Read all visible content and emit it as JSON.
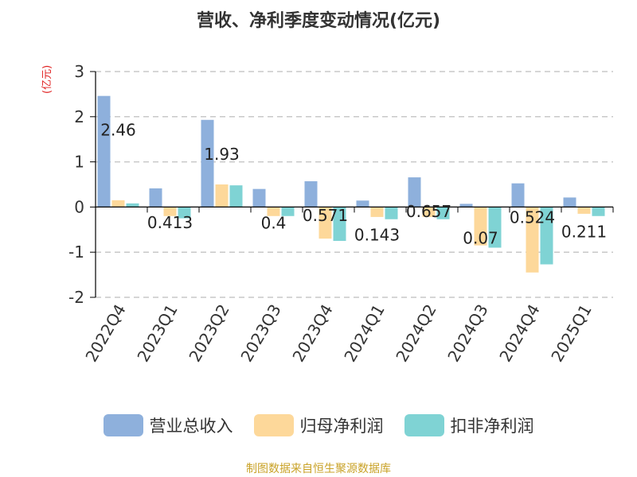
{
  "title": "营收、净利季度变动情况(亿元)",
  "y_unit": "(亿元)",
  "source": "制图数据来自恒生聚源数据库",
  "colors": {
    "revenue": "#8eb0dc",
    "net_profit": "#fdd89a",
    "deducted_profit": "#7fd3d4",
    "axis": "#000000",
    "grid": "#c8c8c8"
  },
  "chart_data": {
    "type": "bar",
    "title": "营收、净利季度变动情况(亿元)",
    "ylabel": "(亿元)",
    "ylim": [
      -2,
      3
    ],
    "yticks": [
      3,
      2,
      1,
      0,
      -1,
      -2
    ],
    "grid": true,
    "legend_position": "bottom",
    "categories": [
      "2022Q4",
      "2023Q1",
      "2023Q2",
      "2023Q3",
      "2023Q4",
      "2024Q1",
      "2024Q2",
      "2024Q3",
      "2024Q4",
      "2025Q1"
    ],
    "series": [
      {
        "name": "营业总收入",
        "values": [
          2.46,
          0.413,
          1.93,
          0.4,
          0.571,
          0.143,
          0.657,
          0.07,
          0.524,
          0.211
        ],
        "labels": [
          "2.46",
          "0.413",
          "1.93",
          "0.4",
          "0.571",
          "0.143",
          "0.657",
          "0.07",
          "0.524",
          "0.211"
        ]
      },
      {
        "name": "归母净利润",
        "values": [
          0.15,
          -0.2,
          0.5,
          -0.2,
          -0.7,
          -0.22,
          -0.22,
          -0.85,
          -1.45,
          -0.15
        ]
      },
      {
        "name": "扣非净利润",
        "values": [
          0.08,
          -0.25,
          0.48,
          -0.2,
          -0.75,
          -0.27,
          -0.27,
          -0.9,
          -1.27,
          -0.2
        ]
      }
    ]
  }
}
